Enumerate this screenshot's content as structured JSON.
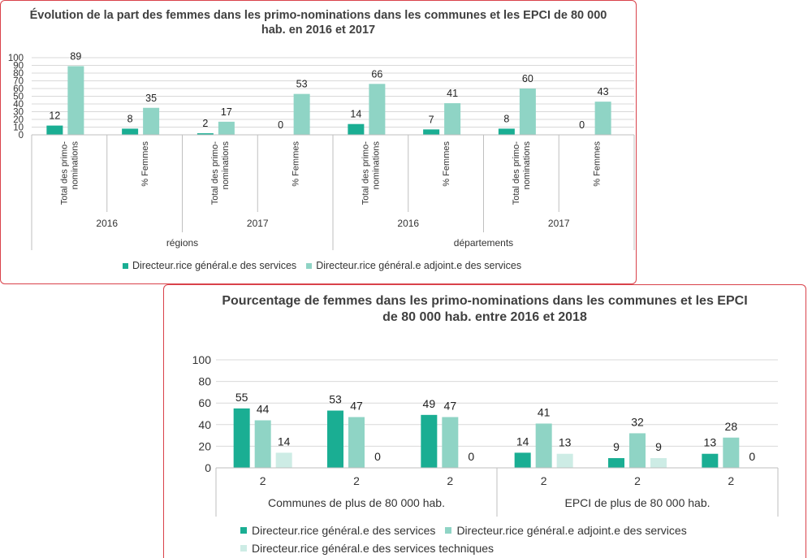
{
  "colors": {
    "dgs": "#1aae93",
    "dgas": "#8fd4c5",
    "dgst": "#cdece5",
    "grid": "#d9d9d9",
    "axis": "#bfbfbf",
    "frame": "#d9424a"
  },
  "chart_data": [
    {
      "type": "bar",
      "title": "Évolution de la part des femmes dans les primo-nominations dans les communes et les EPCI de 80 000 hab. en 2016 et 2017",
      "ylim": [
        0,
        100
      ],
      "yticks": [
        0,
        10,
        20,
        30,
        40,
        50,
        60,
        70,
        80,
        90,
        100
      ],
      "categories": [
        {
          "label": "Total des primo-nominations",
          "year": "2016",
          "group": "régions"
        },
        {
          "label": "% Femmes",
          "year": "2016",
          "group": "régions"
        },
        {
          "label": "Total des primo-nominations",
          "year": "2017",
          "group": "régions"
        },
        {
          "label": "% Femmes",
          "year": "2017",
          "group": "régions"
        },
        {
          "label": "Total des primo-nominations",
          "year": "2016",
          "group": "départements"
        },
        {
          "label": "% Femmes",
          "year": "2016",
          "group": "départements"
        },
        {
          "label": "Total des primo-nominations",
          "year": "2017",
          "group": "départements"
        },
        {
          "label": "% Femmes",
          "year": "2017",
          "group": "départements"
        }
      ],
      "years": [
        "2016",
        "2017",
        "2016",
        "2017"
      ],
      "groups": [
        "régions",
        "départements"
      ],
      "series": [
        {
          "name": "Directeur.rice général.e des services",
          "values": [
            12,
            8,
            2,
            0,
            14,
            7,
            8,
            0
          ]
        },
        {
          "name": "Directeur.rice général.e adjoint.e des services",
          "values": [
            89,
            35,
            17,
            53,
            66,
            41,
            60,
            43
          ]
        }
      ],
      "legend": "bottom"
    },
    {
      "type": "bar",
      "title": "Pourcentage de femmes dans les primo-nominations dans les communes et les EPCI de 80 000 hab. entre 2016 et 2018",
      "ylim": [
        0,
        100
      ],
      "yticks": [
        0,
        20,
        40,
        60,
        80,
        100
      ],
      "categories": [
        "2",
        "2",
        "2",
        "2",
        "2",
        "2"
      ],
      "groups": [
        "Communes de plus de 80 000 hab.",
        "EPCI de plus de 80 000 hab."
      ],
      "series": [
        {
          "name": "Directeur.rice général.e des services",
          "values": [
            55,
            53,
            49,
            14,
            9,
            13
          ]
        },
        {
          "name": "Directeur.rice général.e adjoint.e des services",
          "values": [
            44,
            47,
            47,
            41,
            32,
            28
          ]
        },
        {
          "name": "Directeur.rice général.e des services techniques",
          "values": [
            14,
            0,
            0,
            13,
            9,
            0
          ]
        }
      ],
      "legend": "bottom"
    }
  ]
}
